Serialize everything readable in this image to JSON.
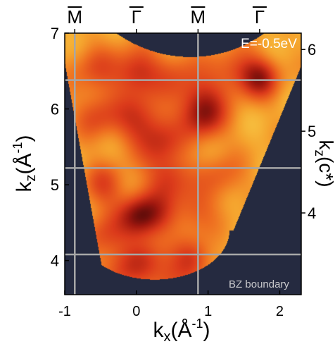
{
  "chart_data": {
    "type": "heatmap",
    "annotation": "E=-0.5eV",
    "boundary_label": "BZ boundary",
    "xlabel": {
      "base": "k",
      "sub": "x",
      "rest": "(Å",
      "sup": "-1",
      "close": ")"
    },
    "ylabel": {
      "base": "k",
      "sub": "z",
      "rest": "(Å",
      "sup": "-1",
      "close": ")"
    },
    "y2label": {
      "base": "k",
      "sub": "z",
      "rest": "(c*)"
    },
    "xlim": [
      -1.0,
      2.3
    ],
    "ylim": [
      3.55,
      7.0
    ],
    "y2lim": [
      3.0,
      6.2
    ],
    "xticks": [
      {
        "value": -1,
        "label": "-1"
      },
      {
        "value": 0,
        "label": "0"
      },
      {
        "value": 1,
        "label": "1"
      },
      {
        "value": 2,
        "label": "2"
      }
    ],
    "yticks": [
      {
        "value": 4,
        "label": "4"
      },
      {
        "value": 5,
        "label": "5"
      },
      {
        "value": 6,
        "label": "6"
      },
      {
        "value": 7,
        "label": "7"
      }
    ],
    "y2ticks": [
      {
        "value": 4,
        "label": "4"
      },
      {
        "value": 5,
        "label": "5"
      },
      {
        "value": 6,
        "label": "6"
      }
    ],
    "top_symbols": [
      {
        "label": "M",
        "x": -0.86
      },
      {
        "label": "Γ",
        "x": 0.0
      },
      {
        "label": "M",
        "x": 0.86
      },
      {
        "label": "Γ",
        "x": 1.72
      }
    ],
    "bz_boundary_kx": [
      -0.86,
      0.86
    ],
    "bz_boundary_kz": [
      6.38,
      5.22,
      4.08
    ],
    "intensity_blobs": [
      {
        "kx": 0.0,
        "kz": 6.5,
        "intensity": 0.9,
        "s": 0.22
      },
      {
        "kx": 1.72,
        "kz": 6.42,
        "intensity": 1.0,
        "s": 0.2
      },
      {
        "kx": 1.35,
        "kz": 6.5,
        "intensity": 0.6,
        "s": 0.22
      },
      {
        "kx": 0.6,
        "kz": 6.45,
        "intensity": 0.5,
        "s": 0.25
      },
      {
        "kx": -0.6,
        "kz": 6.5,
        "intensity": 0.55,
        "s": 0.25
      },
      {
        "kx": 0.05,
        "kz": 5.85,
        "intensity": 0.8,
        "s": 0.25
      },
      {
        "kx": 0.9,
        "kz": 6.1,
        "intensity": 0.7,
        "s": 0.22
      },
      {
        "kx": 0.95,
        "kz": 5.85,
        "intensity": 0.75,
        "s": 0.22
      },
      {
        "kx": -0.55,
        "kz": 5.9,
        "intensity": 0.6,
        "s": 0.22
      },
      {
        "kx": 0.35,
        "kz": 5.55,
        "intensity": 0.6,
        "s": 0.22
      },
      {
        "kx": 0.45,
        "kz": 5.1,
        "intensity": 0.75,
        "s": 0.22
      },
      {
        "kx": -0.45,
        "kz": 5.0,
        "intensity": 0.6,
        "s": 0.22
      },
      {
        "kx": 0.0,
        "kz": 4.6,
        "intensity": 0.95,
        "s": 0.2
      },
      {
        "kx": 0.25,
        "kz": 4.6,
        "intensity": 0.6,
        "s": 0.22
      },
      {
        "kx": -0.5,
        "kz": 4.35,
        "intensity": 0.55,
        "s": 0.22
      },
      {
        "kx": 0.8,
        "kz": 4.65,
        "intensity": 0.55,
        "s": 0.22
      },
      {
        "kx": 0.1,
        "kz": 4.05,
        "intensity": 0.7,
        "s": 0.22
      },
      {
        "kx": 0.8,
        "kz": 4.0,
        "intensity": 0.75,
        "s": 0.2
      },
      {
        "kx": -0.3,
        "kz": 3.85,
        "intensity": 0.55,
        "s": 0.22
      },
      {
        "kx": 0.45,
        "kz": 3.7,
        "intensity": 0.6,
        "s": 0.2
      },
      {
        "kx": 1.2,
        "kz": 5.1,
        "intensity": 0.5,
        "s": 0.22
      }
    ],
    "colors": {
      "background": "#252a40",
      "colormap": [
        "#f7d24a",
        "#f5a42e",
        "#ee6d20",
        "#db3a1b",
        "#a0180f",
        "#4a0808"
      ],
      "grid": "#a7a7a7",
      "annotation": "#ffffff",
      "boundary_label": "#c9c9cc"
    },
    "grid": true
  }
}
